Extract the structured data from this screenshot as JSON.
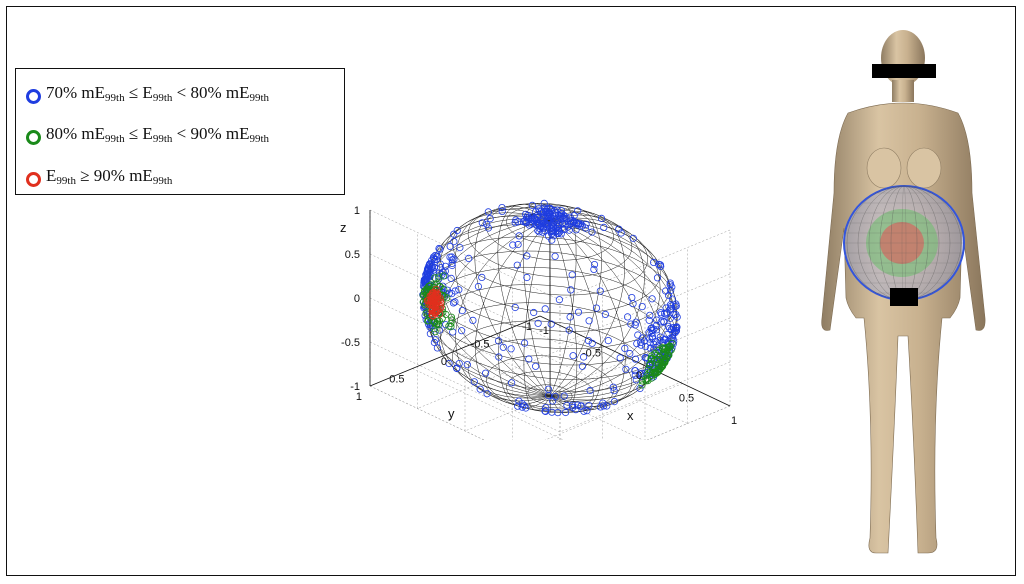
{
  "legend": {
    "items": [
      {
        "color": "#1f3de0",
        "parts": [
          {
            "t": "70% mE"
          },
          {
            "s": "99th"
          },
          {
            "t": " ≤ E"
          },
          {
            "s": "99th"
          },
          {
            "t": " < 80% mE"
          },
          {
            "s": "99th"
          }
        ]
      },
      {
        "color": "#1a8a1a",
        "parts": [
          {
            "t": "80% mE"
          },
          {
            "s": "99th"
          },
          {
            "t": " ≤ E"
          },
          {
            "s": "99th"
          },
          {
            "t": " < 90% mE"
          },
          {
            "s": "99th"
          }
        ]
      },
      {
        "color": "#e0301e",
        "parts": [
          {
            "t": "E"
          },
          {
            "s": "99th"
          },
          {
            "t": " ≥ 90% mE"
          },
          {
            "s": "99th"
          }
        ]
      }
    ]
  },
  "chart_data": {
    "type": "scatter",
    "title": "",
    "xlabel": "x",
    "ylabel": "y",
    "zlabel": "z",
    "xlim": [
      -1,
      1
    ],
    "ylim": [
      -1,
      1
    ],
    "zlim": [
      -1,
      1
    ],
    "x_ticks": [
      "-1",
      "-0.5",
      "0",
      "0.5",
      "1"
    ],
    "y_ticks": [
      "-1",
      "-0.5",
      "0",
      "0.5",
      "1"
    ],
    "z_ticks": [
      "-1",
      "-0.5",
      "0",
      "0.5",
      "1"
    ],
    "grid": true,
    "series": [
      {
        "color": "#1f3de0",
        "regions": [
          {
            "x": 0,
            "y": 0,
            "z": 0.92,
            "spread": 0.18,
            "count": 140
          },
          {
            "x": -0.75,
            "y": 0.3,
            "z": 0.0,
            "spread": 0.3,
            "count": 120
          },
          {
            "x": 0.78,
            "y": -0.2,
            "z": 0.0,
            "spread": 0.28,
            "count": 120
          },
          {
            "x": 0.0,
            "y": 0.0,
            "z": -0.1,
            "spread": 0.55,
            "count": 160
          }
        ]
      },
      {
        "color": "#1a8a1a",
        "regions": [
          {
            "x": -0.72,
            "y": 0.3,
            "z": -0.2,
            "spread": 0.18,
            "count": 90
          },
          {
            "x": 0.72,
            "y": -0.2,
            "z": -0.2,
            "spread": 0.16,
            "count": 80
          }
        ]
      },
      {
        "color": "#e0301e",
        "regions": [
          {
            "x": -0.85,
            "y": 0.35,
            "z": -0.25,
            "spread": 0.1,
            "count": 70
          }
        ]
      }
    ]
  }
}
